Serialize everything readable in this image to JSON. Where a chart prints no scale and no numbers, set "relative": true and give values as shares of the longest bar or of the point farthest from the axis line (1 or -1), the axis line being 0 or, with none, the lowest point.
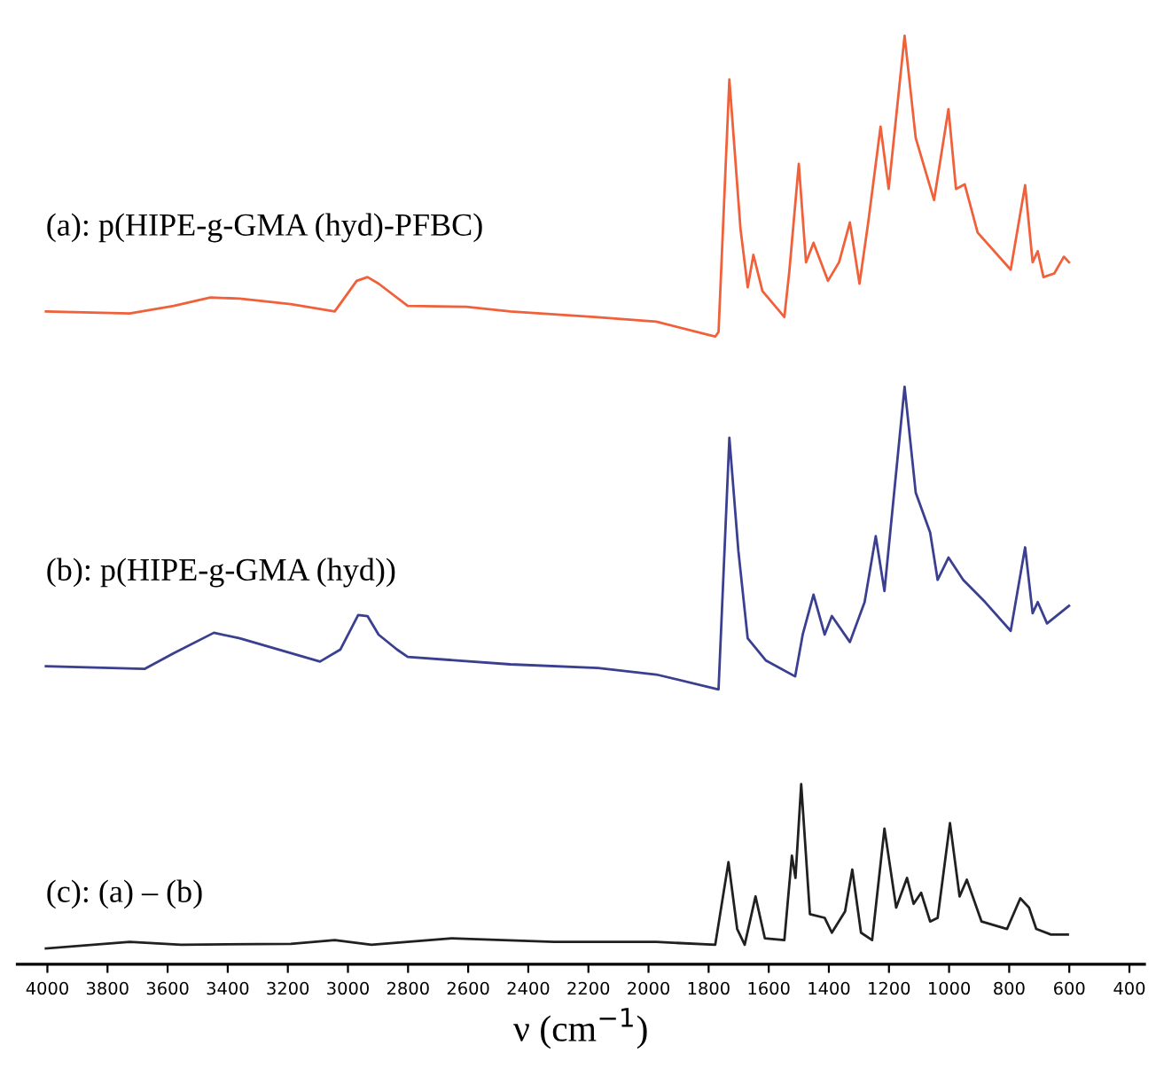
{
  "chart_data": {
    "type": "line",
    "xlabel": "ν (cm$^{−1}$)",
    "relative": true,
    "xlim": [
      4100,
      350
    ],
    "tick_labels": "x",
    "grid": false,
    "legend": false,
    "xticks": [
      4000,
      3800,
      3600,
      3400,
      3200,
      3000,
      2800,
      2600,
      2400,
      2200,
      2000,
      1800,
      1600,
      1400,
      1200,
      1000,
      800,
      600,
      400
    ],
    "series": [
      {
        "name": "(a): p(HIPE-g-GMA (hyd)-PFBC)",
        "color": "#f0603a",
        "x": [
          4005,
          3726,
          3580,
          3458,
          3360,
          3190,
          3044,
          2971,
          2935,
          2898,
          2801,
          2606,
          2460,
          2180,
          1974,
          1791,
          1778,
          1767,
          1731,
          1694,
          1670,
          1651,
          1621,
          1548,
          1531,
          1500,
          1476,
          1451,
          1403,
          1366,
          1330,
          1298,
          1269,
          1228,
          1201,
          1148,
          1111,
          1050,
          1002,
          977,
          948,
          905,
          795,
          747,
          722,
          705,
          686,
          650,
          618,
          601
        ],
        "values": [
          0.703,
          0.701,
          0.709,
          0.718,
          0.717,
          0.711,
          0.703,
          0.736,
          0.74,
          0.733,
          0.709,
          0.708,
          0.703,
          0.697,
          0.692,
          0.677,
          0.676,
          0.681,
          0.953,
          0.792,
          0.729,
          0.764,
          0.725,
          0.697,
          0.748,
          0.862,
          0.756,
          0.777,
          0.736,
          0.756,
          0.799,
          0.733,
          0.799,
          0.902,
          0.835,
          1.0,
          0.89,
          0.823,
          0.921,
          0.835,
          0.84,
          0.788,
          0.748,
          0.839,
          0.756,
          0.768,
          0.74,
          0.744,
          0.762,
          0.756
        ]
      },
      {
        "name": "(b): p(HIPE-g-GMA (hyd))",
        "color": "#3a3f8f",
        "x": [
          4005,
          3677,
          3580,
          3446,
          3360,
          3093,
          3025,
          2966,
          2935,
          2898,
          2837,
          2801,
          2460,
          2168,
          1974,
          1767,
          1731,
          1701,
          1670,
          1609,
          1512,
          1487,
          1451,
          1414,
          1390,
          1330,
          1281,
          1244,
          1215,
          1148,
          1111,
          1063,
          1038,
          1002,
          953,
          880,
          795,
          747,
          722,
          705,
          674,
          601
        ],
        "values": [
          0.321,
          0.318,
          0.335,
          0.357,
          0.351,
          0.326,
          0.339,
          0.376,
          0.375,
          0.355,
          0.339,
          0.331,
          0.323,
          0.319,
          0.312,
          0.296,
          0.567,
          0.445,
          0.351,
          0.327,
          0.31,
          0.355,
          0.398,
          0.355,
          0.375,
          0.347,
          0.39,
          0.461,
          0.402,
          0.622,
          0.508,
          0.465,
          0.414,
          0.438,
          0.414,
          0.39,
          0.359,
          0.449,
          0.378,
          0.39,
          0.367,
          0.386
        ]
      },
      {
        "name": "(c): (a) – (b)",
        "color": "#202020",
        "x": [
          4005,
          3726,
          3555,
          3190,
          3044,
          2922,
          2655,
          2314,
          1974,
          1778,
          1734,
          1705,
          1680,
          1644,
          1613,
          1548,
          1523,
          1511,
          1492,
          1463,
          1414,
          1390,
          1346,
          1322,
          1293,
          1256,
          1215,
          1176,
          1140,
          1118,
          1093,
          1063,
          1038,
          997,
          965,
          941,
          892,
          807,
          763,
          734,
          710,
          661,
          605
        ],
        "values": [
          0.017,
          0.024,
          0.021,
          0.022,
          0.026,
          0.021,
          0.028,
          0.024,
          0.024,
          0.021,
          0.11,
          0.038,
          0.021,
          0.073,
          0.028,
          0.026,
          0.117,
          0.093,
          0.194,
          0.054,
          0.05,
          0.034,
          0.057,
          0.102,
          0.034,
          0.026,
          0.146,
          0.061,
          0.093,
          0.065,
          0.077,
          0.046,
          0.05,
          0.152,
          0.073,
          0.091,
          0.046,
          0.038,
          0.071,
          0.061,
          0.038,
          0.032,
          0.032
        ]
      }
    ]
  }
}
